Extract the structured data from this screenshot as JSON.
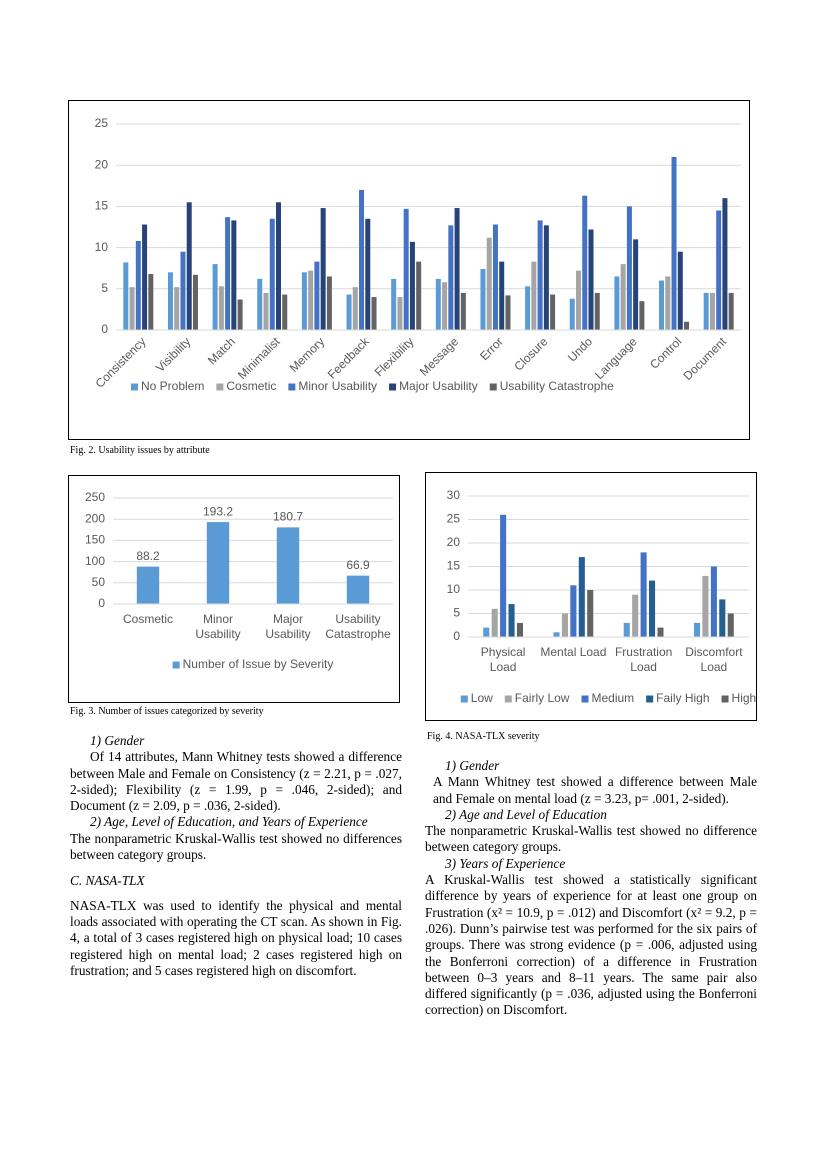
{
  "chart_data": [
    {
      "type": "bar",
      "caption": "Fig. 2.   Usability issues by attribute",
      "categories": [
        "Consistency",
        "Visibility",
        "Match",
        "Minimalist",
        "Memory",
        "Feedback",
        "Flexibility",
        "Message",
        "Error",
        "Closure",
        "Undo",
        "Language",
        "Control",
        "Document"
      ],
      "series": [
        {
          "name": "No Problem",
          "color": "#5b9bd5",
          "values": [
            8.2,
            7,
            8,
            6.2,
            7,
            4.3,
            6.2,
            6.2,
            7.4,
            5.3,
            3.8,
            6.5,
            6,
            4.5
          ]
        },
        {
          "name": "Cosmetic",
          "color": "#a5a5a5",
          "values": [
            5.2,
            5.2,
            5.3,
            4.5,
            7.2,
            5.2,
            4,
            5.8,
            11.2,
            8.3,
            7.2,
            8,
            6.5,
            4.5
          ]
        },
        {
          "name": "Minor Usability",
          "color": "#4472c4",
          "values": [
            10.8,
            9.5,
            13.7,
            13.5,
            8.3,
            17,
            14.7,
            12.7,
            12.8,
            13.3,
            16.3,
            15,
            21,
            14.5
          ]
        },
        {
          "name": "Major Usability",
          "color": "#264478",
          "values": [
            12.8,
            15.5,
            13.3,
            15.5,
            14.8,
            13.5,
            10.7,
            14.8,
            8.3,
            12.7,
            12.2,
            11,
            9.5,
            16
          ]
        },
        {
          "name": "Usability Catastrophe",
          "color": "#636363",
          "values": [
            6.8,
            6.7,
            3.7,
            4.3,
            6.5,
            4,
            8.3,
            4.5,
            4.2,
            4.3,
            4.5,
            3.5,
            1,
            4.5
          ]
        }
      ],
      "ylim": [
        0,
        25
      ],
      "yticks": [
        0,
        5,
        10,
        15,
        20,
        25
      ],
      "grid": true
    },
    {
      "type": "bar",
      "caption": "Fig. 3.   Number of issues categorized by severity",
      "categories": [
        "Cosmetic",
        "Minor Usability",
        "Major Usability",
        "Usability Catastrophe"
      ],
      "series": [
        {
          "name": "Number of Issue by Severity",
          "color": "#5b9bd5",
          "values": [
            88.2,
            193.2,
            180.7,
            66.9
          ]
        }
      ],
      "ylim": [
        0,
        250
      ],
      "yticks": [
        0,
        50,
        100,
        150,
        200,
        250
      ],
      "grid": true
    },
    {
      "type": "bar",
      "caption": "Fig. 4.   NASA-TLX severity",
      "categories": [
        "Physical Load",
        "Mental Load",
        "Frustration Load",
        "Discomfort Load"
      ],
      "series": [
        {
          "name": "Low",
          "color": "#5b9bd5",
          "values": [
            2,
            1,
            3,
            3
          ]
        },
        {
          "name": "Fairly Low",
          "color": "#a5a5a5",
          "values": [
            6,
            5,
            9,
            13
          ]
        },
        {
          "name": "Medium",
          "color": "#4472c4",
          "values": [
            26,
            11,
            18,
            15
          ]
        },
        {
          "name": "Faily High",
          "color": "#255e91",
          "values": [
            7,
            17,
            12,
            8
          ]
        },
        {
          "name": "High",
          "color": "#636363",
          "values": [
            3,
            10,
            2,
            5
          ]
        }
      ],
      "ylim": [
        0,
        30
      ],
      "yticks": [
        0,
        5,
        10,
        15,
        20,
        25,
        30
      ],
      "grid": true
    }
  ],
  "left_column": [
    "1) Gender",
    "Of 14 attributes, Mann Whitney tests showed a difference between Male and Female on Consistency (z = 2.21, p = .027, 2-sided); Flexibility (z = 1.99, p = .046, 2-sided); and Document (z = 2.09, p = .036, 2-sided).",
    "2) Age, Level of Education, and Years of Experience",
    "The nonparametric Kruskal-Wallis test showed no differences between category groups.",
    "C. NASA-TLX",
    "NASA-TLX was used to identify the physical and mental loads associated with operating the CT scan. As shown in Fig. 4, a total of 3 cases registered high on physical load; 10 cases registered high on mental load; 2 cases registered high on frustration; and 5 cases registered high on discomfort."
  ],
  "right_column": [
    "1) Gender",
    "A Mann Whitney test showed a difference between Male and Female on mental load (z = 3.23, p= .001, 2-sided).",
    "2) Age and Level of Education",
    "The nonparametric Kruskal-Wallis test showed no difference between category groups.",
    "3) Years of Experience",
    "A Kruskal-Wallis test showed a statistically significant difference by years of experience for at least one group on Frustration (x² = 10.9, p = .012) and Discomfort (x² = 9.2, p = .026). Dunn’s pairwise test was performed for the six pairs of groups. There was strong evidence (p = .006, adjusted using the Bonferroni correction) of a difference in Frustration between 0–3 years and 8–11 years. The same pair also differed significantly (p = .036, adjusted using the Bonferroni correction) on Discomfort."
  ]
}
